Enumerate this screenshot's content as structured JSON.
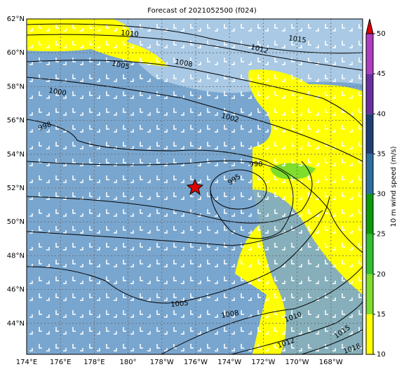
{
  "title": "Forecast of 2021052500 (f024)",
  "lat_labels": [
    "62°N",
    "60°N",
    "58°N",
    "56°N",
    "54°N",
    "52°N",
    "50°N",
    "48°N",
    "46°N",
    "44°N"
  ],
  "lon_labels": [
    "174°E",
    "176°E",
    "178°E",
    "180°",
    "178°W",
    "176°W",
    "174°W",
    "172°W",
    "170°W",
    "168°W"
  ],
  "colorbar": {
    "label": "10 m wind speed (m/s)",
    "range": [
      10,
      50
    ],
    "ticks": [
      10,
      15,
      20,
      25,
      30,
      35,
      40,
      45,
      50
    ],
    "colors": [
      "#ffff00",
      "#7fdd2b",
      "#2fbf2f",
      "#0a9a0a",
      "#2d6e9e",
      "#1f3f73",
      "#6a2ea0",
      "#b03cc0"
    ],
    "extend_color": "#e00000"
  },
  "contour_labels": [
    "1010",
    "1015",
    "1012",
    "1008",
    "1005",
    "1000",
    "1002",
    "998",
    "998",
    "995",
    "1005",
    "1008",
    "1010",
    "1015",
    "1012",
    "1018"
  ]
}
